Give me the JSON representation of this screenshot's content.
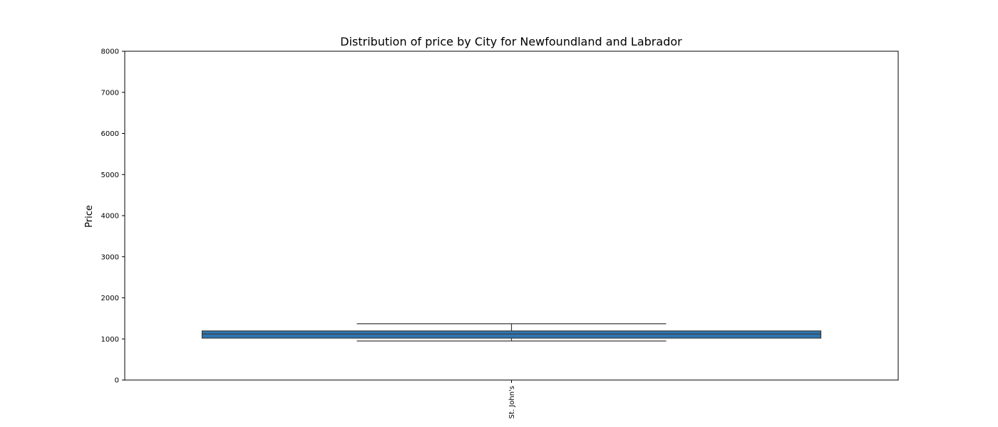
{
  "chart_data": {
    "type": "box",
    "title": "Distribution of price by City for Newfoundland and Labrador",
    "xlabel": "",
    "ylabel": "Price",
    "ylim": [
      0,
      8000
    ],
    "yticks": [
      0,
      1000,
      2000,
      3000,
      4000,
      5000,
      6000,
      7000,
      8000
    ],
    "categories": [
      "St. John's"
    ],
    "boxes": [
      {
        "category": "St. John's",
        "whisker_low": 950,
        "q1": 1020,
        "median": 1120,
        "q3": 1195,
        "whisker_high": 1370
      }
    ],
    "grid": false,
    "colors": {
      "box_fill": "#2e75b0",
      "line": "#3a3a3a",
      "axis": "#000000"
    }
  }
}
